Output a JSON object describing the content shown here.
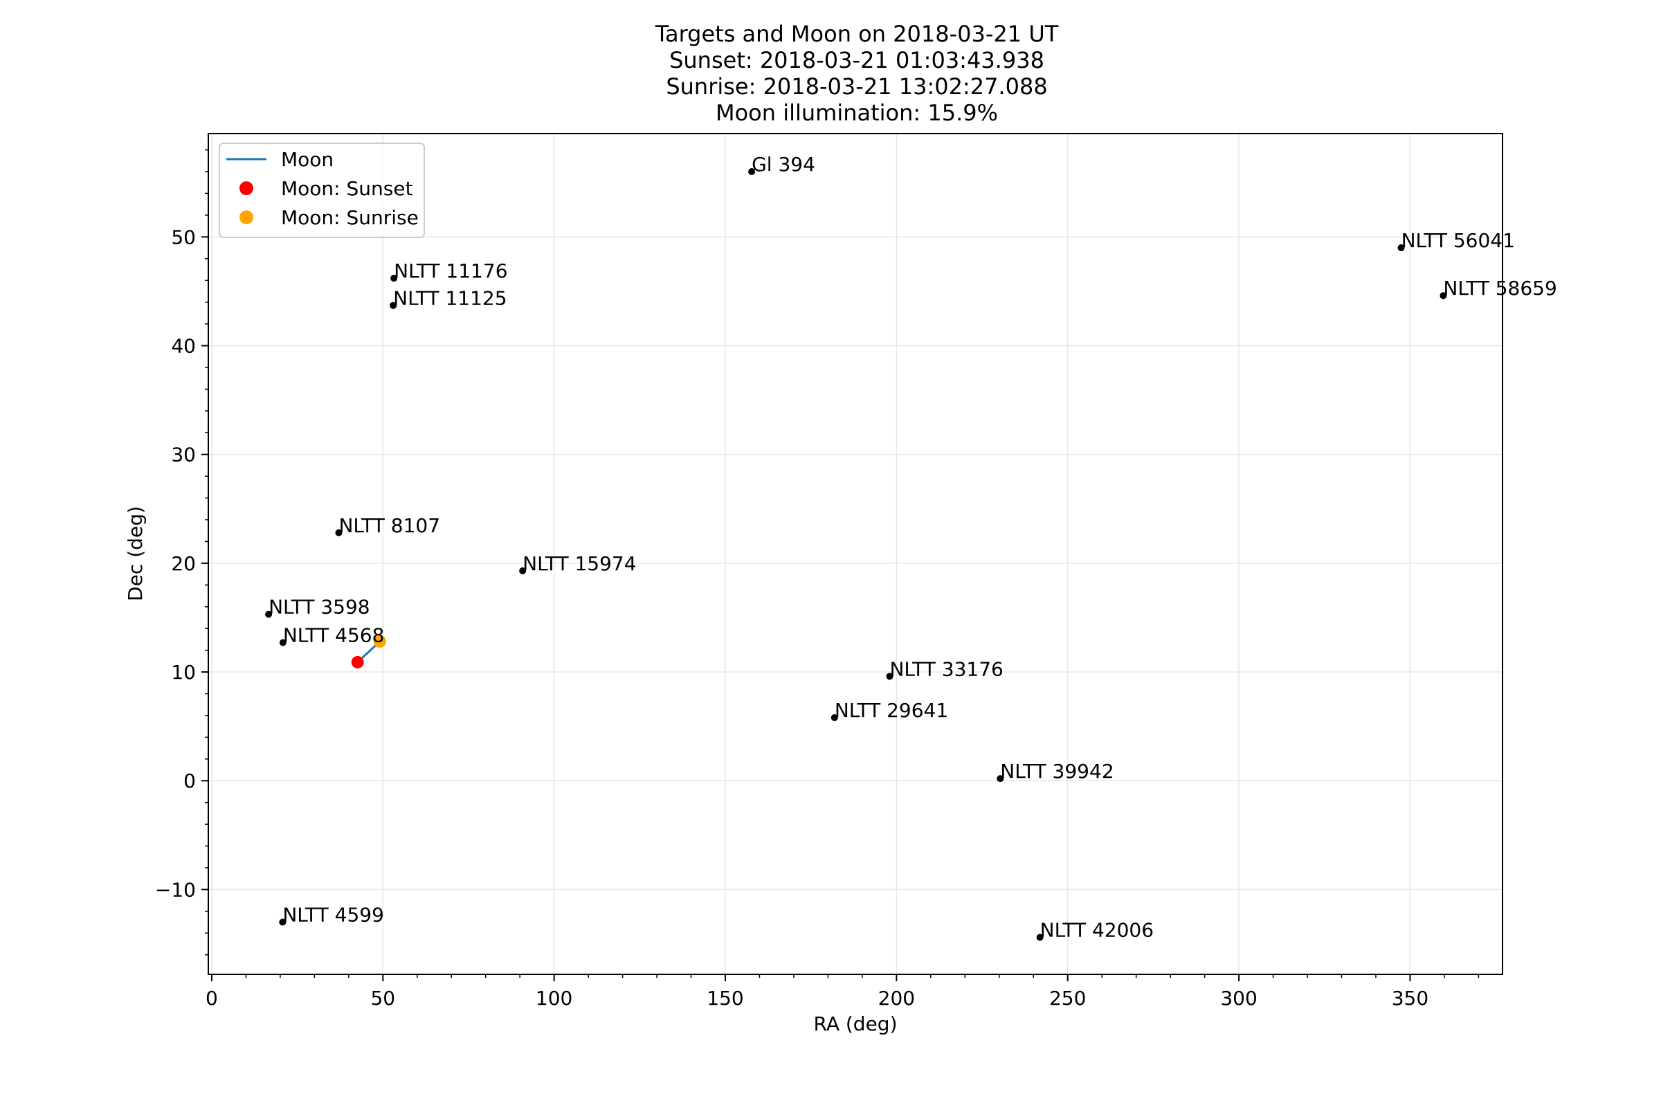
{
  "chart_data": {
    "type": "scatter",
    "title": [
      "Targets and Moon on 2018-03-21 UT",
      "Sunset: 2018-03-21 01:03:43.938",
      "Sunrise: 2018-03-21 13:02:27.088",
      "Moon illumination: 15.9%"
    ],
    "xlabel": "RA (deg)",
    "ylabel": "Dec (deg)",
    "xlim": [
      -1,
      377
    ],
    "ylim": [
      -17.8,
      59.5
    ],
    "xticks": [
      0,
      50,
      100,
      150,
      200,
      250,
      300,
      350
    ],
    "yticks": [
      -10,
      0,
      10,
      20,
      30,
      40,
      50
    ],
    "xtick_labels": [
      "0",
      "50",
      "100",
      "150",
      "200",
      "250",
      "300",
      "350"
    ],
    "ytick_labels": [
      "−10",
      "0",
      "10",
      "20",
      "30",
      "40",
      "50"
    ],
    "grid": true,
    "legend_placement": "top-left",
    "legend": [
      {
        "label": "Moon",
        "kind": "line",
        "color": "#1f77b4"
      },
      {
        "label": "Moon: Sunset",
        "kind": "marker",
        "color": "#ff0000"
      },
      {
        "label": "Moon: Sunrise",
        "kind": "marker",
        "color": "#ffa500"
      }
    ],
    "targets": [
      {
        "name": "Gl 394",
        "ra": 157.7,
        "dec": 56.0
      },
      {
        "name": "NLTT 56041",
        "ra": 347.4,
        "dec": 49.0
      },
      {
        "name": "NLTT 58659",
        "ra": 359.7,
        "dec": 44.6
      },
      {
        "name": "NLTT 11176",
        "ra": 53.2,
        "dec": 46.2
      },
      {
        "name": "NLTT 11125",
        "ra": 53.0,
        "dec": 43.7
      },
      {
        "name": "NLTT 8107",
        "ra": 37.1,
        "dec": 22.8
      },
      {
        "name": "NLTT 15974",
        "ra": 90.8,
        "dec": 19.3
      },
      {
        "name": "NLTT 3598",
        "ra": 16.6,
        "dec": 15.3
      },
      {
        "name": "NLTT 4568",
        "ra": 20.8,
        "dec": 12.7
      },
      {
        "name": "NLTT 33176",
        "ra": 198.0,
        "dec": 9.6
      },
      {
        "name": "NLTT 29641",
        "ra": 181.9,
        "dec": 5.8
      },
      {
        "name": "NLTT 39942",
        "ra": 230.3,
        "dec": 0.2
      },
      {
        "name": "NLTT 4599",
        "ra": 20.7,
        "dec": -13.0
      },
      {
        "name": "NLTT 42006",
        "ra": 241.9,
        "dec": -14.4
      }
    ],
    "moon_track": [
      {
        "ra": 42.6,
        "dec": 10.9
      },
      {
        "ra": 49.1,
        "dec": 12.8
      }
    ],
    "moon_sunset": {
      "ra": 42.6,
      "dec": 10.9,
      "color": "#ff0000"
    },
    "moon_sunrise": {
      "ra": 49.1,
      "dec": 12.8,
      "color": "#ffa500"
    },
    "target_color": "#000000",
    "moon_line_color": "#1f77b4"
  }
}
